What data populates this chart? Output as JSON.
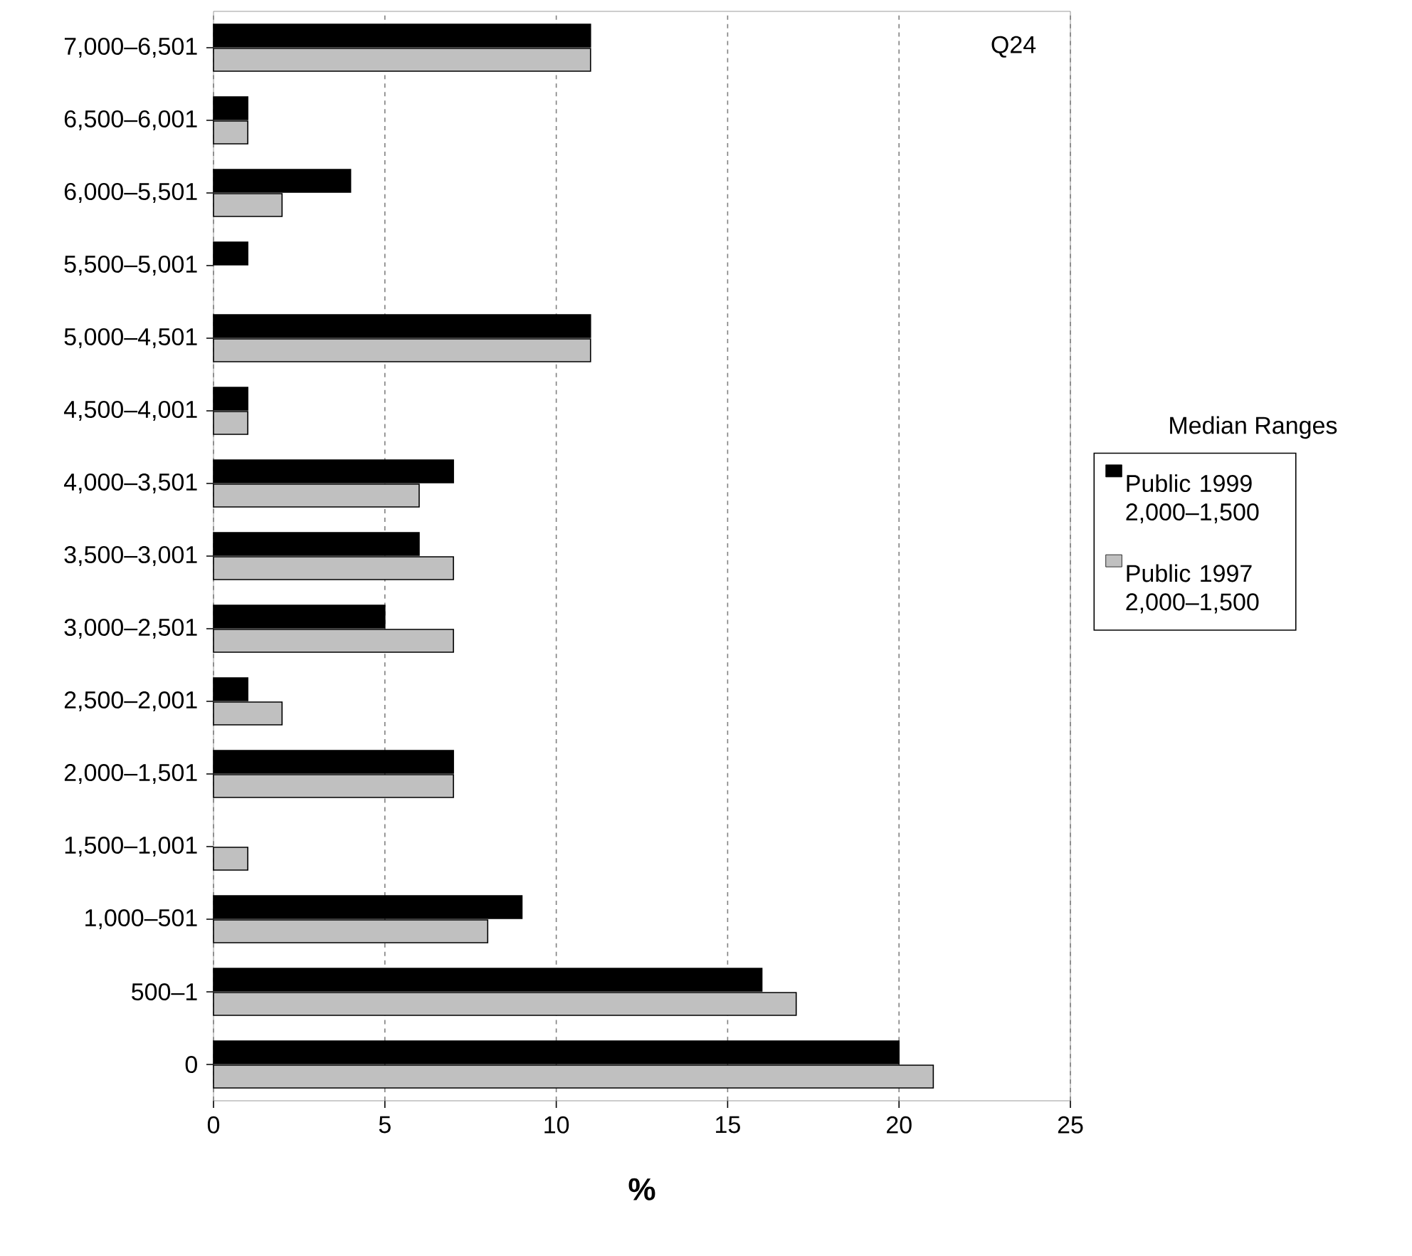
{
  "chart_data": {
    "type": "bar",
    "orientation": "horizontal",
    "xlabel": "%",
    "categories": [
      "7,000–6,501",
      "6,500–6,001",
      "6,000–5,501",
      "5,500–5,001",
      "5,000–4,501",
      "4,500–4,001",
      "4,000–3,501",
      "3,500–3,001",
      "3,000–2,501",
      "2,500–2,001",
      "2,000–1,501",
      "1,500–1,001",
      "1,000–501",
      "500–1",
      "0"
    ],
    "series": [
      {
        "name": "Public 1999 2,000–1,500",
        "color": "#000000",
        "values": [
          11,
          1,
          4,
          1,
          11,
          1,
          7,
          6,
          5,
          1,
          7,
          null,
          9,
          16,
          20
        ]
      },
      {
        "name": "Public 1997 2,000–1,500",
        "color": "#c0c0c0",
        "values": [
          11,
          1,
          2,
          null,
          11,
          1,
          6,
          7,
          7,
          2,
          7,
          1,
          8,
          17,
          21
        ]
      }
    ],
    "xlim": [
      0,
      25
    ],
    "xticks": [
      0,
      5,
      10,
      15,
      20,
      25
    ],
    "grid": "x",
    "legend": "right",
    "legend_title": "Median Ranges",
    "annotations": [
      "Q24"
    ]
  }
}
